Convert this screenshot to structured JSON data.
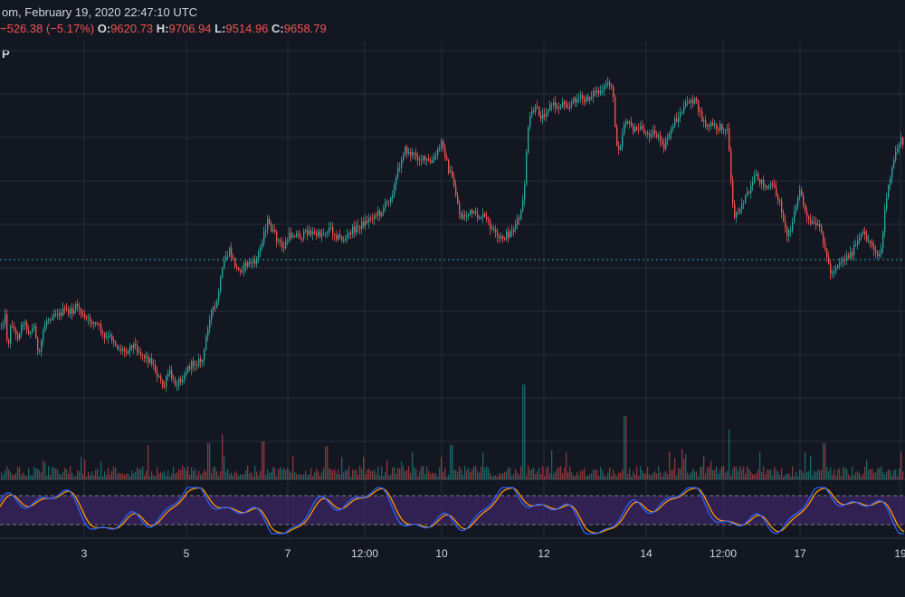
{
  "header": {
    "line1": "om, February 19, 2020 22:47:10 UTC",
    "change": "−526.38 (−5.17%)",
    "o_label": "O:",
    "o_value": "9620.73",
    "h_label": "H:",
    "h_value": "9706.94",
    "l_label": "L:",
    "l_value": "9514.96",
    "c_label": "C:",
    "c_value": "9658.79",
    "indicator_label": "P"
  },
  "colors": {
    "background": "#131722",
    "up": "#26a69a",
    "down": "#ef5350",
    "grid": "#2a2e39",
    "stoch_k": "#2962ff",
    "stoch_d": "#ff9800",
    "stoch_band": "#4a2a7a"
  },
  "chart_data": {
    "type": "candlestick",
    "x_ticks": [
      "3",
      "5",
      "7",
      "12:00",
      "10",
      "12",
      "14",
      "12:00",
      "17",
      "19"
    ],
    "grid": true,
    "price_path": [
      [
        0,
        360
      ],
      [
        5,
        350
      ],
      [
        8,
        385
      ],
      [
        12,
        355
      ],
      [
        18,
        375
      ],
      [
        25,
        355
      ],
      [
        32,
        368
      ],
      [
        38,
        360
      ],
      [
        42,
        400
      ],
      [
        46,
        370
      ],
      [
        50,
        355
      ],
      [
        55,
        350
      ],
      [
        60,
        345
      ],
      [
        65,
        348
      ],
      [
        70,
        343
      ],
      [
        78,
        345
      ],
      [
        85,
        338
      ],
      [
        92,
        352
      ],
      [
        100,
        355
      ],
      [
        108,
        360
      ],
      [
        115,
        375
      ],
      [
        122,
        372
      ],
      [
        130,
        385
      ],
      [
        138,
        388
      ],
      [
        146,
        380
      ],
      [
        153,
        388
      ],
      [
        160,
        395
      ],
      [
        167,
        400
      ],
      [
        172,
        412
      ],
      [
        176,
        420
      ],
      [
        180,
        430
      ],
      [
        186,
        410
      ],
      [
        192,
        425
      ],
      [
        200,
        418
      ],
      [
        206,
        408
      ],
      [
        212,
        402
      ],
      [
        218,
        400
      ],
      [
        224,
        398
      ],
      [
        228,
        365
      ],
      [
        232,
        345
      ],
      [
        238,
        340
      ],
      [
        243,
        310
      ],
      [
        248,
        285
      ],
      [
        253,
        278
      ],
      [
        258,
        290
      ],
      [
        262,
        300
      ],
      [
        268,
        295
      ],
      [
        274,
        290
      ],
      [
        280,
        292
      ],
      [
        286,
        278
      ],
      [
        290,
        260
      ],
      [
        295,
        245
      ],
      [
        300,
        255
      ],
      [
        306,
        265
      ],
      [
        312,
        275
      ],
      [
        318,
        262
      ],
      [
        325,
        258
      ],
      [
        332,
        262
      ],
      [
        340,
        255
      ],
      [
        348,
        260
      ],
      [
        356,
        258
      ],
      [
        364,
        252
      ],
      [
        372,
        262
      ],
      [
        380,
        265
      ],
      [
        388,
        255
      ],
      [
        396,
        250
      ],
      [
        404,
        245
      ],
      [
        412,
        238
      ],
      [
        420,
        235
      ],
      [
        428,
        222
      ],
      [
        434,
        210
      ],
      [
        440,
        185
      ],
      [
        446,
        165
      ],
      [
        452,
        170
      ],
      [
        458,
        172
      ],
      [
        464,
        175
      ],
      [
        470,
        178
      ],
      [
        476,
        180
      ],
      [
        482,
        170
      ],
      [
        488,
        155
      ],
      [
        494,
        185
      ],
      [
        500,
        200
      ],
      [
        504,
        220
      ],
      [
        508,
        240
      ],
      [
        514,
        238
      ],
      [
        520,
        235
      ],
      [
        526,
        240
      ],
      [
        532,
        238
      ],
      [
        538,
        245
      ],
      [
        544,
        255
      ],
      [
        550,
        265
      ],
      [
        556,
        262
      ],
      [
        562,
        258
      ],
      [
        568,
        250
      ],
      [
        574,
        240
      ],
      [
        578,
        220
      ],
      [
        582,
        150
      ],
      [
        586,
        125
      ],
      [
        592,
        120
      ],
      [
        598,
        130
      ],
      [
        604,
        120
      ],
      [
        610,
        115
      ],
      [
        616,
        120
      ],
      [
        622,
        112
      ],
      [
        628,
        118
      ],
      [
        634,
        110
      ],
      [
        640,
        108
      ],
      [
        646,
        112
      ],
      [
        652,
        105
      ],
      [
        658,
        100
      ],
      [
        664,
        105
      ],
      [
        670,
        90
      ],
      [
        676,
        95
      ],
      [
        680,
        155
      ],
      [
        684,
        165
      ],
      [
        690,
        130
      ],
      [
        696,
        140
      ],
      [
        702,
        145
      ],
      [
        708,
        140
      ],
      [
        714,
        150
      ],
      [
        720,
        145
      ],
      [
        726,
        150
      ],
      [
        732,
        165
      ],
      [
        738,
        150
      ],
      [
        744,
        135
      ],
      [
        750,
        128
      ],
      [
        756,
        118
      ],
      [
        762,
        110
      ],
      [
        768,
        112
      ],
      [
        774,
        130
      ],
      [
        780,
        140
      ],
      [
        786,
        138
      ],
      [
        792,
        142
      ],
      [
        798,
        140
      ],
      [
        804,
        145
      ],
      [
        807,
        200
      ],
      [
        810,
        240
      ],
      [
        816,
        230
      ],
      [
        822,
        220
      ],
      [
        828,
        212
      ],
      [
        834,
        195
      ],
      [
        840,
        200
      ],
      [
        846,
        208
      ],
      [
        852,
        205
      ],
      [
        858,
        215
      ],
      [
        864,
        235
      ],
      [
        868,
        260
      ],
      [
        872,
        255
      ],
      [
        876,
        240
      ],
      [
        880,
        222
      ],
      [
        884,
        210
      ],
      [
        888,
        230
      ],
      [
        892,
        245
      ],
      [
        896,
        248
      ],
      [
        902,
        250
      ],
      [
        906,
        255
      ],
      [
        910,
        268
      ],
      [
        914,
        290
      ],
      [
        918,
        305
      ],
      [
        922,
        295
      ],
      [
        928,
        288
      ],
      [
        934,
        285
      ],
      [
        940,
        280
      ],
      [
        946,
        270
      ],
      [
        952,
        258
      ],
      [
        958,
        265
      ],
      [
        962,
        270
      ],
      [
        966,
        275
      ],
      [
        970,
        285
      ],
      [
        974,
        270
      ],
      [
        978,
        220
      ],
      [
        982,
        205
      ],
      [
        986,
        180
      ],
      [
        990,
        165
      ],
      [
        994,
        155
      ],
      [
        998,
        160
      ]
    ]
  }
}
